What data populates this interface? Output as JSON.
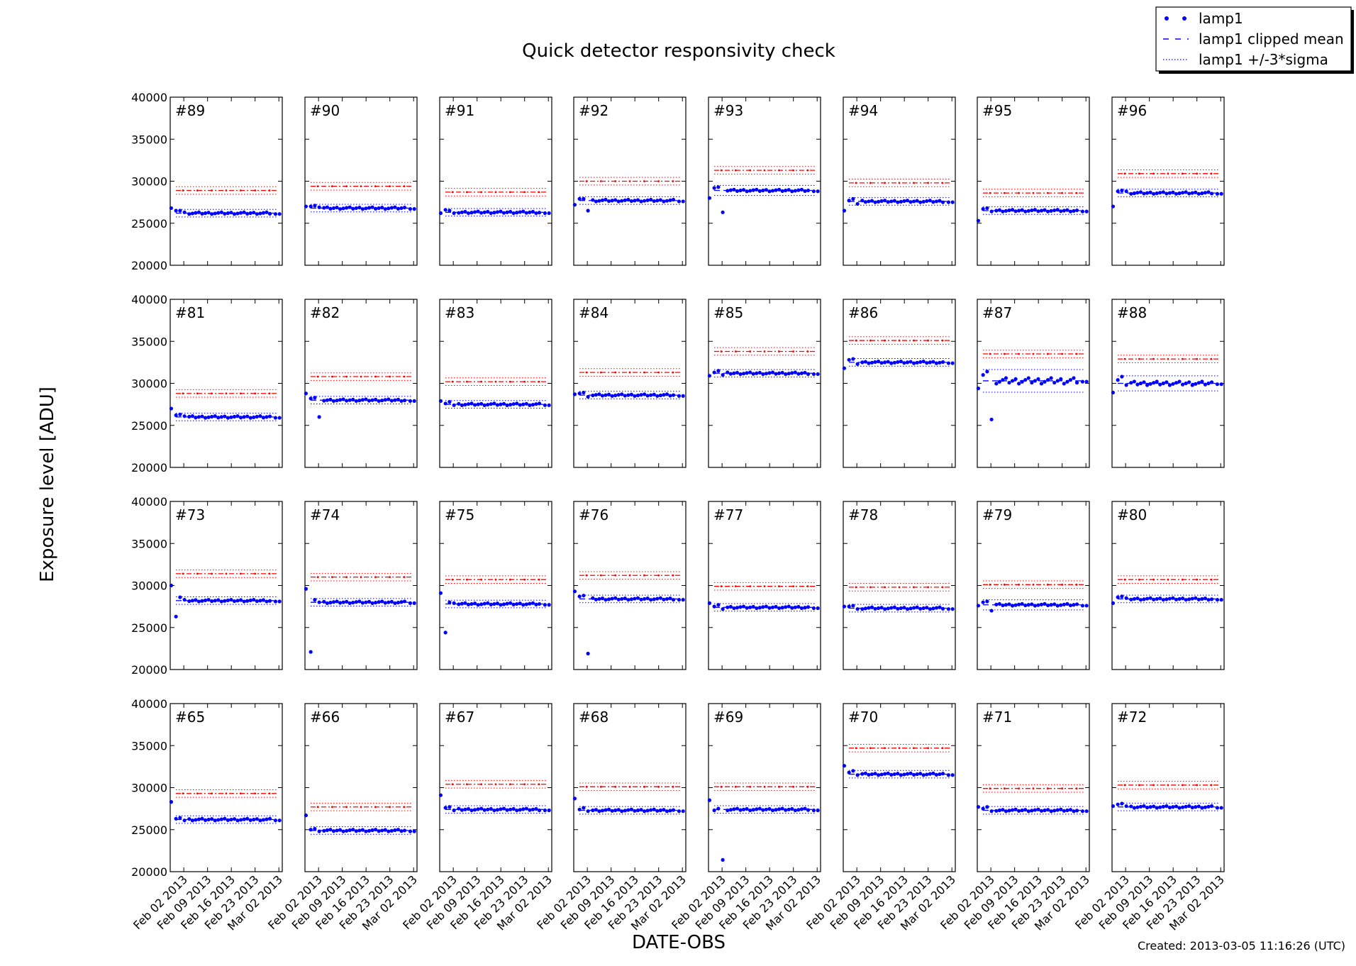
{
  "chart_data": {
    "type": "scatter",
    "title": "Quick detector responsivity check",
    "xlabel": "DATE-OBS",
    "ylabel": "Exposure level [ADU]",
    "ylim": [
      20000,
      40000
    ],
    "yticks": [
      20000,
      25000,
      30000,
      35000,
      40000
    ],
    "ytick_labels": [
      "20000",
      "25000",
      "30000",
      "35000",
      "40000"
    ],
    "xlim": [
      "2013-01-29",
      "2013-03-03"
    ],
    "xticks": [
      "2013-02-02",
      "2013-02-09",
      "2013-02-16",
      "2013-02-23",
      "2013-03-02"
    ],
    "xtick_labels": [
      "Feb 02 2013",
      "Feb 09 2013",
      "Feb 16 2013",
      "Feb 23 2013",
      "Mar 02 2013"
    ],
    "legend": {
      "placement": "top-right",
      "entries": [
        {
          "label": "lamp1",
          "style": "dots",
          "color": "#0000ff"
        },
        {
          "label": "lamp1 clipped mean",
          "style": "dashed",
          "color": "#0000ff"
        },
        {
          "label": "lamp1 +/-3*sigma",
          "style": "dotted",
          "color": "#0000ff"
        }
      ]
    },
    "colors": {
      "lamp1": "#0000ff",
      "reference": "#ff0000",
      "frame": "#000000"
    },
    "layout": {
      "rows": 4,
      "cols": 8
    },
    "panels": [
      {
        "label": "#89",
        "mean": 26200,
        "sigma": 150,
        "ref": 28900,
        "first": [
          26800,
          26500,
          26500,
          26300
        ],
        "outliers": []
      },
      {
        "label": "#90",
        "mean": 26800,
        "sigma": 150,
        "ref": 29400,
        "first": [
          27000,
          27000,
          27100,
          26900
        ],
        "outliers": []
      },
      {
        "label": "#91",
        "mean": 26300,
        "sigma": 150,
        "ref": 28700,
        "first": [
          26200,
          26600,
          26500,
          26200
        ],
        "outliers": []
      },
      {
        "label": "#92",
        "mean": 27700,
        "sigma": 150,
        "ref": 30000,
        "first": [
          27200,
          27900,
          27900,
          26500
        ],
        "outliers": []
      },
      {
        "label": "#93",
        "mean": 28900,
        "sigma": 200,
        "ref": 31300,
        "first": [
          28000,
          29200,
          29300,
          26300
        ],
        "outliers": []
      },
      {
        "label": "#94",
        "mean": 27600,
        "sigma": 150,
        "ref": 29800,
        "first": [
          26500,
          27700,
          27900,
          27300
        ],
        "outliers": []
      },
      {
        "label": "#95",
        "mean": 26500,
        "sigma": 150,
        "ref": 28600,
        "first": [
          25300,
          26700,
          26800,
          26400
        ],
        "outliers": []
      },
      {
        "label": "#96",
        "mean": 28600,
        "sigma": 150,
        "ref": 30900,
        "first": [
          27000,
          28800,
          28900,
          28800
        ],
        "outliers": []
      },
      {
        "label": "#81",
        "mean": 26000,
        "sigma": 150,
        "ref": 28800,
        "first": [
          27000,
          26200,
          26300,
          26100
        ],
        "outliers": []
      },
      {
        "label": "#82",
        "mean": 28000,
        "sigma": 150,
        "ref": 30800,
        "first": [
          28800,
          28200,
          28300,
          26000
        ],
        "outliers": []
      },
      {
        "label": "#83",
        "mean": 27500,
        "sigma": 150,
        "ref": 30200,
        "first": [
          27900,
          27600,
          27800,
          27400
        ],
        "outliers": []
      },
      {
        "label": "#84",
        "mean": 28600,
        "sigma": 150,
        "ref": 31300,
        "first": [
          28700,
          28800,
          28900,
          28400
        ],
        "outliers": []
      },
      {
        "label": "#85",
        "mean": 31200,
        "sigma": 150,
        "ref": 33800,
        "first": [
          30900,
          31300,
          31500,
          31000
        ],
        "outliers": []
      },
      {
        "label": "#86",
        "mean": 32500,
        "sigma": 150,
        "ref": 35100,
        "first": [
          31800,
          32800,
          32900,
          32300
        ],
        "outliers": []
      },
      {
        "label": "#87",
        "mean": 30300,
        "sigma": 450,
        "ref": 33500,
        "first": [
          29400,
          31000,
          31400,
          25700
        ],
        "outliers": []
      },
      {
        "label": "#88",
        "mean": 30000,
        "sigma": 300,
        "ref": 32900,
        "first": [
          28900,
          30400,
          30800,
          29800
        ],
        "outliers": []
      },
      {
        "label": "#73",
        "mean": 28200,
        "sigma": 150,
        "ref": 31400,
        "first": [
          30000,
          26300,
          28600,
          28300
        ],
        "outliers": []
      },
      {
        "label": "#74",
        "mean": 28000,
        "sigma": 150,
        "ref": 31000,
        "first": [
          29600,
          22100,
          28300,
          28000
        ],
        "outliers": []
      },
      {
        "label": "#75",
        "mean": 27800,
        "sigma": 150,
        "ref": 30700,
        "first": [
          29100,
          24400,
          28000,
          27900
        ],
        "outliers": []
      },
      {
        "label": "#76",
        "mean": 28400,
        "sigma": 150,
        "ref": 31200,
        "first": [
          29300,
          28700,
          28800,
          21900
        ],
        "outliers": []
      },
      {
        "label": "#77",
        "mean": 27400,
        "sigma": 150,
        "ref": 29900,
        "first": [
          27900,
          27500,
          27700,
          27200
        ],
        "outliers": []
      },
      {
        "label": "#78",
        "mean": 27300,
        "sigma": 150,
        "ref": 29800,
        "first": [
          27500,
          27500,
          27600,
          27200
        ],
        "outliers": []
      },
      {
        "label": "#79",
        "mean": 27700,
        "sigma": 200,
        "ref": 30100,
        "first": [
          27600,
          28000,
          28100,
          27000
        ],
        "outliers": []
      },
      {
        "label": "#80",
        "mean": 28400,
        "sigma": 150,
        "ref": 30700,
        "first": [
          27900,
          28600,
          28700,
          28500
        ],
        "outliers": []
      },
      {
        "label": "#65",
        "mean": 26200,
        "sigma": 150,
        "ref": 29300,
        "first": [
          28300,
          26300,
          26400,
          26100
        ],
        "outliers": []
      },
      {
        "label": "#66",
        "mean": 24900,
        "sigma": 150,
        "ref": 27700,
        "first": [
          26700,
          25000,
          25100,
          24800
        ],
        "outliers": []
      },
      {
        "label": "#67",
        "mean": 27400,
        "sigma": 150,
        "ref": 30400,
        "first": [
          29100,
          27600,
          27700,
          27300
        ],
        "outliers": []
      },
      {
        "label": "#68",
        "mean": 27300,
        "sigma": 150,
        "ref": 30100,
        "first": [
          28700,
          27400,
          27600,
          27200
        ],
        "outliers": []
      },
      {
        "label": "#69",
        "mean": 27400,
        "sigma": 150,
        "ref": 30100,
        "first": [
          28500,
          27300,
          27500,
          21400
        ],
        "outliers": []
      },
      {
        "label": "#70",
        "mean": 31600,
        "sigma": 150,
        "ref": 34700,
        "first": [
          32600,
          31800,
          32000,
          31500
        ],
        "outliers": []
      },
      {
        "label": "#71",
        "mean": 27300,
        "sigma": 150,
        "ref": 29900,
        "first": [
          27700,
          27500,
          27700,
          27200
        ],
        "outliers": []
      },
      {
        "label": "#72",
        "mean": 27700,
        "sigma": 150,
        "ref": 30300,
        "first": [
          27800,
          28000,
          28100,
          27800
        ],
        "outliers": []
      }
    ],
    "footer": "Created: 2013-03-05 11:16:26 (UTC)"
  }
}
